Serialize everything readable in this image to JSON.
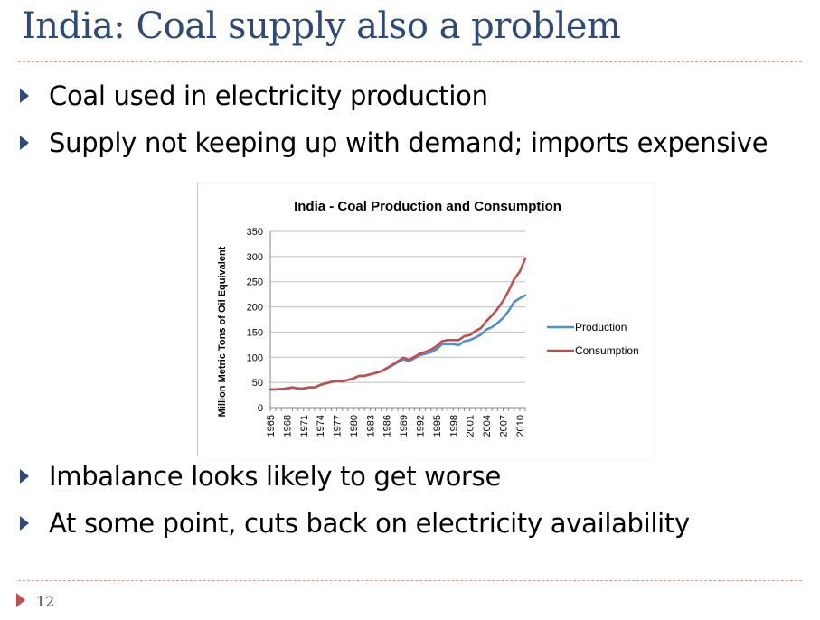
{
  "slide": {
    "title": "India: Coal supply also a problem",
    "bullets": [
      "Coal used in electricity production",
      "Supply not keeping up with demand; imports expensive",
      "Imbalance looks likely to get worse",
      "At some point, cuts back on electricity availability"
    ],
    "page_number": "12"
  },
  "colors": {
    "title": "#2d4a7a",
    "production": "#4f8fcf",
    "consumption": "#c0504d",
    "rule": "#d79a8a"
  },
  "chart_data": {
    "type": "line",
    "title": "India - Coal Production and Consumption",
    "xlabel": "",
    "ylabel": "Million Metric Tons of Oil Equivalent",
    "ylim": [
      0,
      350
    ],
    "yticks": [
      0,
      50,
      100,
      150,
      200,
      250,
      300,
      350
    ],
    "xlim": [
      1965,
      2011
    ],
    "xtick_labels": [
      "1965",
      "1968",
      "1971",
      "1974",
      "1977",
      "1980",
      "1983",
      "1986",
      "1989",
      "1992",
      "1995",
      "1998",
      "2001",
      "2004",
      "2007",
      "2010"
    ],
    "grid": true,
    "legend_position": "right",
    "x": [
      1965,
      1966,
      1967,
      1968,
      1969,
      1970,
      1971,
      1972,
      1973,
      1974,
      1975,
      1976,
      1977,
      1978,
      1979,
      1980,
      1981,
      1982,
      1983,
      1984,
      1985,
      1986,
      1987,
      1988,
      1989,
      1990,
      1991,
      1992,
      1993,
      1994,
      1995,
      1996,
      1997,
      1998,
      1999,
      2000,
      2001,
      2002,
      2003,
      2004,
      2005,
      2006,
      2007,
      2008,
      2009,
      2010,
      2011
    ],
    "series": [
      {
        "name": "Production",
        "values": [
          36,
          36,
          37,
          38,
          40,
          38,
          38,
          40,
          40,
          45,
          48,
          51,
          53,
          52,
          55,
          58,
          63,
          63,
          66,
          69,
          72,
          78,
          84,
          90,
          96,
          92,
          98,
          104,
          107,
          110,
          116,
          126,
          126,
          126,
          124,
          132,
          134,
          139,
          145,
          155,
          160,
          168,
          178,
          192,
          210,
          217,
          223
        ]
      },
      {
        "name": "Consumption",
        "values": [
          36,
          36,
          37,
          38,
          40,
          38,
          38,
          40,
          40,
          45,
          48,
          51,
          53,
          52,
          55,
          58,
          63,
          63,
          66,
          69,
          72,
          78,
          85,
          92,
          99,
          95,
          101,
          107,
          111,
          115,
          122,
          132,
          134,
          134,
          134,
          142,
          144,
          152,
          158,
          172,
          183,
          196,
          212,
          232,
          255,
          270,
          296
        ]
      }
    ]
  }
}
